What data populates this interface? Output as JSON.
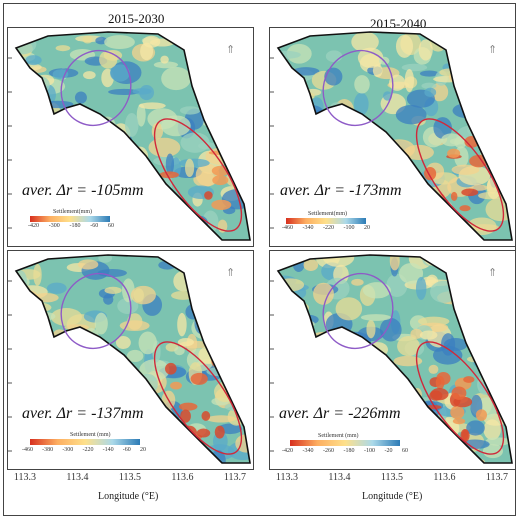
{
  "panels": [
    {
      "title": "2015-2030",
      "aver": "aver. Δr = -105mm",
      "colorbar_title": "Settlement(mm)",
      "colorbar_ticks": [
        "-420",
        "-300",
        "-180",
        "-60",
        "60"
      ],
      "colors": [
        "#d7301f",
        "#fdae61",
        "#fee08b",
        "#abd9e9",
        "#2c7bb6"
      ]
    },
    {
      "title": "2015-2040",
      "aver": "aver. Δr = -173mm",
      "colorbar_title": "Settlement(mm)",
      "colorbar_ticks": [
        "-460",
        "-340",
        "-220",
        "-100",
        "20"
      ],
      "colors": [
        "#d7301f",
        "#fdae61",
        "#fee08b",
        "#abd9e9",
        "#2c7bb6"
      ]
    },
    {
      "title": "",
      "aver": "aver. Δr = -137mm",
      "colorbar_title": "Settlement (mm)",
      "colorbar_ticks": [
        "-460",
        "-380",
        "-300",
        "-220",
        "-140",
        "-60",
        "20"
      ],
      "colors": [
        "#d7301f",
        "#fdae61",
        "#fee08b",
        "#abd9e9",
        "#2c7bb6"
      ]
    },
    {
      "title": "",
      "aver": "aver. Δr = -226mm",
      "colorbar_title": "Settlement (mm)",
      "colorbar_ticks": [
        "-420",
        "-340",
        "-260",
        "-180",
        "-100",
        "-20",
        "60"
      ],
      "colors": [
        "#d7301f",
        "#fdae61",
        "#fee08b",
        "#abd9e9",
        "#2c7bb6"
      ]
    }
  ],
  "longitude_ticks": [
    "113.3",
    "113.4",
    "113.5",
    "113.6",
    "113.7"
  ],
  "xlabels": [
    "Longitude (°E)",
    "Longitude (°E)"
  ],
  "north_symbol": "north-arrow-icon",
  "ellipse_colors": {
    "purple": "#8e5bc7",
    "red": "#d0283a"
  }
}
